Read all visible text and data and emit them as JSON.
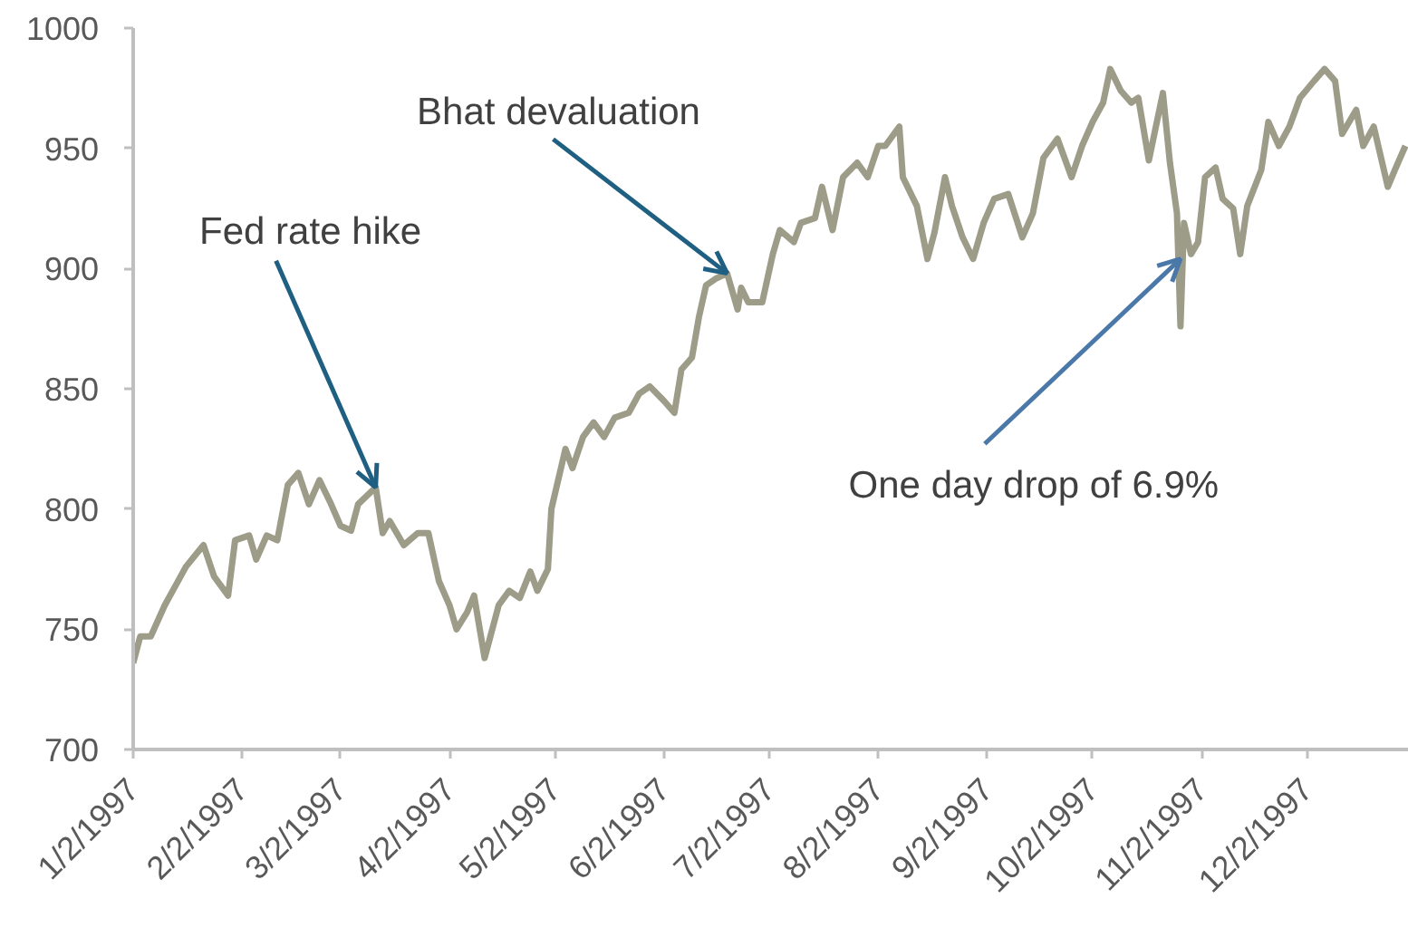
{
  "chart_data": {
    "type": "line",
    "x": [
      "1997-01-02",
      "1997-01-04",
      "1997-01-07",
      "1997-01-11",
      "1997-01-14",
      "1997-01-17",
      "1997-01-22",
      "1997-01-25",
      "1997-01-29",
      "1997-01-31",
      "1997-02-04",
      "1997-02-06",
      "1997-02-09",
      "1997-02-12",
      "1997-02-15",
      "1997-02-18",
      "1997-02-21",
      "1997-02-24",
      "1997-02-27",
      "1997-03-02",
      "1997-03-05",
      "1997-03-07",
      "1997-03-12",
      "1997-03-14",
      "1997-03-16",
      "1997-03-20",
      "1997-03-24",
      "1997-03-27",
      "1997-03-30",
      "1997-04-02",
      "1997-04-04",
      "1997-04-07",
      "1997-04-09",
      "1997-04-12",
      "1997-04-16",
      "1997-04-19",
      "1997-04-22",
      "1997-04-25",
      "1997-04-27",
      "1997-04-30",
      "1997-05-01",
      "1997-05-05",
      "1997-05-07",
      "1997-05-10",
      "1997-05-13",
      "1997-05-16",
      "1997-05-19",
      "1997-05-23",
      "1997-05-26",
      "1997-05-29",
      "1997-06-02",
      "1997-06-05",
      "1997-06-07",
      "1997-06-10",
      "1997-06-12",
      "1997-06-14",
      "1997-06-17",
      "1997-06-20",
      "1997-06-23",
      "1997-06-24",
      "1997-06-26",
      "1997-06-30",
      "1997-07-03",
      "1997-07-05",
      "1997-07-09",
      "1997-07-11",
      "1997-07-15",
      "1997-07-17",
      "1997-07-20",
      "1997-07-23",
      "1997-07-27",
      "1997-07-30",
      "1997-08-02",
      "1997-08-04",
      "1997-08-08",
      "1997-08-09",
      "1997-08-13",
      "1997-08-16",
      "1997-08-18",
      "1997-08-21",
      "1997-08-23",
      "1997-08-26",
      "1997-08-29",
      "1997-09-01",
      "1997-09-04",
      "1997-09-08",
      "1997-09-12",
      "1997-09-15",
      "1997-09-18",
      "1997-09-22",
      "1997-09-26",
      "1997-09-29",
      "1997-10-02",
      "1997-10-05",
      "1997-10-07",
      "1997-10-10",
      "1997-10-13",
      "1997-10-15",
      "1997-10-18",
      "1997-10-20",
      "1997-10-22",
      "1997-10-24",
      "1997-10-26",
      "1997-10-27",
      "1997-10-28",
      "1997-10-30",
      "1997-11-01",
      "1997-11-03",
      "1997-11-06",
      "1997-11-08",
      "1997-11-11",
      "1997-11-13",
      "1997-11-15",
      "1997-11-19",
      "1997-11-21",
      "1997-11-24",
      "1997-11-27",
      "1997-11-30",
      "1997-12-04",
      "1997-12-07",
      "1997-12-10",
      "1997-12-12",
      "1997-12-16",
      "1997-12-18",
      "1997-12-21",
      "1997-12-25",
      "1997-12-27",
      "1997-12-30"
    ],
    "values": [
      736,
      747,
      747,
      760,
      768,
      776,
      785,
      772,
      764,
      787,
      789,
      779,
      789,
      787,
      810,
      815,
      802,
      812,
      803,
      793,
      791,
      802,
      809,
      790,
      795,
      785,
      790,
      790,
      770,
      760,
      750,
      757,
      764,
      738,
      760,
      766,
      763,
      774,
      766,
      775,
      800,
      825,
      817,
      830,
      836,
      830,
      838,
      840,
      848,
      851,
      845,
      840,
      858,
      863,
      880,
      893,
      896,
      898,
      883,
      892,
      886,
      886,
      906,
      916,
      911,
      919,
      921,
      934,
      916,
      938,
      944,
      938,
      951,
      951,
      959,
      938,
      926,
      904,
      915,
      938,
      926,
      913,
      904,
      919,
      929,
      931,
      913,
      923,
      946,
      954,
      938,
      951,
      961,
      969,
      983,
      974,
      969,
      971,
      945,
      959,
      973,
      944,
      923,
      876,
      919,
      906,
      911,
      938,
      942,
      929,
      925,
      906,
      926,
      941,
      961,
      951,
      959,
      971,
      978,
      983,
      978,
      956,
      966,
      951,
      959,
      934,
      941,
      951
    ],
    "color": "#9d9c88",
    "line_style": "solid",
    "xlim": [
      "1997-01-02",
      "1997-12-31"
    ],
    "xticks": [
      {
        "value": "1997-01-02",
        "label": "1/2/1997"
      },
      {
        "value": "1997-02-02",
        "label": "2/2/1997"
      },
      {
        "value": "1997-03-02",
        "label": "3/2/1997"
      },
      {
        "value": "1997-04-02",
        "label": "4/2/1997"
      },
      {
        "value": "1997-05-02",
        "label": "5/2/1997"
      },
      {
        "value": "1997-06-02",
        "label": "6/2/1997"
      },
      {
        "value": "1997-07-02",
        "label": "7/2/1997"
      },
      {
        "value": "1997-08-02",
        "label": "8/2/1997"
      },
      {
        "value": "1997-09-02",
        "label": "9/2/1997"
      },
      {
        "value": "1997-10-02",
        "label": "10/2/1997"
      },
      {
        "value": "1997-11-02",
        "label": "11/2/1997"
      },
      {
        "value": "1997-12-02",
        "label": "12/2/1997"
      }
    ],
    "ylim": [
      700,
      1000
    ],
    "yticks": [
      700,
      750,
      800,
      850,
      900,
      950,
      1000
    ],
    "annotations": [
      {
        "text": "Fed rate hike",
        "x": "1997-03-12",
        "y": 809
      },
      {
        "text": "Bhat devaluation",
        "x": "1997-06-20",
        "y": 898
      },
      {
        "text": "One day drop of 6.9%",
        "x": "1997-10-27",
        "y": 904
      }
    ]
  }
}
